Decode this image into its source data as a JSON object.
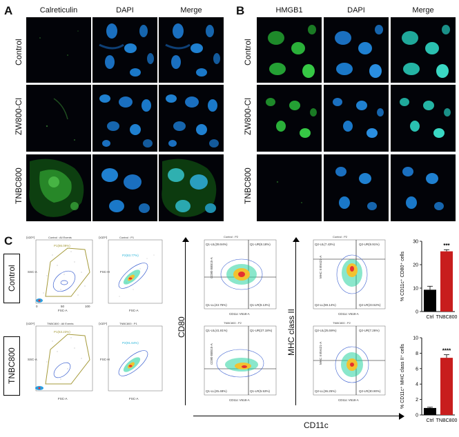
{
  "panel_a": {
    "letter": "A",
    "columns": [
      "Calreticulin",
      "DAPI",
      "Merge"
    ],
    "rows": [
      "Control",
      "ZW800-Cl",
      "TNBC800"
    ]
  },
  "panel_b": {
    "letter": "B",
    "columns": [
      "HMGB1",
      "DAPI",
      "Merge"
    ],
    "rows": [
      "Control",
      "ZW800-Cl",
      "TNBC800"
    ]
  },
  "panel_c": {
    "letter": "C",
    "groups": [
      "Control",
      "TNBC800"
    ],
    "flow": {
      "control": {
        "all_events_title": "Control : All Events",
        "gate_p1": "P1(86.09%)",
        "p1_title": "Control : P1",
        "gate_p2": "P2(83.77%)",
        "cd80_title": "Control : P2",
        "cd80_quads": [
          "Q1-UL(39.94%)",
          "Q1-UR(8.18%)",
          "Q1-LL(43.75%)",
          "Q1-LR(8.13%)"
        ],
        "mhc_title": "Control : P2",
        "mhc_quads": [
          "Q2-UL(7.43%)",
          "Q2-UR(9.91%)",
          "Q2-LL(59.14%)",
          "Q2-LR(23.52%)"
        ]
      },
      "tnbc": {
        "all_events_title": "TNBC800 : All Events",
        "gate_p1": "P1(53.23%)",
        "p1_title": "TNBC800 : P1",
        "gate_p2": "P2(91.64%)",
        "cd80_title": "TNBC800 : P2",
        "cd80_quads": [
          "Q1-UL(41.81%)",
          "Q1-UR(27.18%)",
          "Q1-LL(25.48%)",
          "Q1-LR(5.53%)"
        ],
        "mhc_title": "TNBC800 : P2",
        "mhc_quads": [
          "Q2-UL(25.59%)",
          "Q2-UR(7.26%)",
          "Q2-LL(36.25%)",
          "Q2-LR(30.90%)"
        ]
      },
      "axes": {
        "ssc": "SSC-A",
        "fsc": "FSC-A",
        "fsch": "FSC-H",
        "cd80_axis": "CD80 BB515-A",
        "mhc_axis": "MHC II BV421-A",
        "cd11c_axis": "CD11c V618-A",
        "scale": "(x10⁴)",
        "ticks_linear": [
          "0",
          "50",
          "100"
        ],
        "ticks_log": [
          "10³",
          "10⁴",
          "10⁵"
        ],
        "cd80_label": "CD80",
        "mhc_label": "MHC class II",
        "cd11c_label": "CD11c"
      }
    }
  },
  "chart_data": [
    {
      "type": "bar",
      "title": "",
      "ylabel": "% CD11c⁺ CD80⁺ cells",
      "categories": [
        "Ctrl",
        "TNBC800"
      ],
      "values": [
        9.3,
        25.7
      ],
      "errors": [
        1.5,
        0.7
      ],
      "ylim": [
        0,
        30
      ],
      "yticks": [
        "0",
        "10",
        "20",
        "30"
      ],
      "significance": "***",
      "colors": [
        "#000000",
        "#c81d1d"
      ]
    },
    {
      "type": "bar",
      "title": "",
      "ylabel": "% CD11c⁺ MHC class II⁺ cells",
      "categories": [
        "Ctrl",
        "TNBC800"
      ],
      "values": [
        0.9,
        7.4
      ],
      "errors": [
        0.1,
        0.4
      ],
      "ylim": [
        0,
        10
      ],
      "yticks": [
        "0",
        "2",
        "4",
        "6",
        "8",
        "10"
      ],
      "significance": "****",
      "colors": [
        "#000000",
        "#c81d1d"
      ]
    }
  ]
}
